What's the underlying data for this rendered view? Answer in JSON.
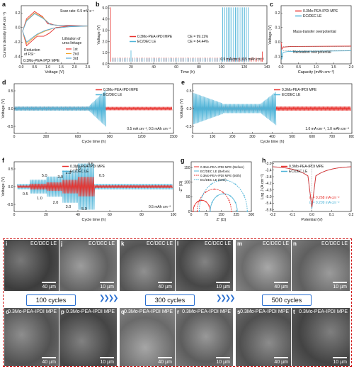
{
  "chart_data": [
    {
      "panel": "a",
      "type": "line",
      "xlabel": "Voltage (V)",
      "ylabel": "Current density (mA cm⁻²)",
      "xticks": [
        "0.0",
        "0.5",
        "1.0",
        "1.5",
        "2.0",
        "2.5"
      ],
      "yticks": [
        "0.2",
        "0.0",
        "-0.2",
        "-0.4"
      ],
      "annotations": [
        "Scan rate: 0.5 mV s⁻¹",
        "Lithiation of urea linkage",
        "Reduction of FSI⁻",
        "0.3Mo-PEA-IPDI MPE"
      ],
      "series": [
        {
          "name": "1st",
          "color": "#e8322e",
          "x": [
            2.5,
            1.8,
            1.3,
            1.05,
            0.85,
            0.6,
            0.2,
            0.05,
            0.2,
            0.5,
            0.8,
            1.0,
            1.1,
            1.3,
            1.8,
            2.5
          ],
          "y": [
            0.02,
            0.02,
            0.0,
            -0.08,
            -0.12,
            -0.12,
            -0.25,
            -0.05,
            0.12,
            0.22,
            0.15,
            0.05,
            0.05,
            0.03,
            0.03,
            0.02
          ]
        },
        {
          "name": "2nd",
          "color": "#f2a52b",
          "x": [
            2.5,
            1.8,
            1.2,
            0.9,
            0.6,
            0.2,
            0.05,
            0.2,
            0.5,
            0.8,
            1.1,
            1.8,
            2.5
          ],
          "y": [
            0.02,
            0.01,
            -0.01,
            -0.05,
            -0.1,
            -0.22,
            -0.05,
            0.1,
            0.2,
            0.14,
            0.04,
            0.02,
            0.02
          ]
        },
        {
          "name": "3rd",
          "color": "#5aa9d8",
          "x": [
            2.5,
            1.8,
            1.2,
            0.9,
            0.6,
            0.2,
            0.05,
            0.2,
            0.5,
            0.8,
            1.1,
            1.8,
            2.5
          ],
          "y": [
            0.02,
            0.01,
            -0.01,
            -0.04,
            -0.09,
            -0.2,
            -0.05,
            0.09,
            0.19,
            0.13,
            0.04,
            0.02,
            0.02
          ]
        }
      ]
    },
    {
      "panel": "b",
      "type": "line",
      "xlabel": "Time (h)",
      "ylabel": "Voltage (V)",
      "xticks": [
        "0",
        "20",
        "40",
        "60",
        "80",
        "100",
        "120",
        "140"
      ],
      "yticks": [
        "0.0",
        "1.0",
        "2.0",
        "3.0",
        "4.0",
        "5.0"
      ],
      "legend": [
        "0.3Mo-PEA-IPDI MPE",
        "EC/DEC LE"
      ],
      "labels": [
        "CE = 99.11%",
        "CE = 84.44%"
      ],
      "note": "0.5 mA cm⁻², 0.5 mAh cm⁻²"
    },
    {
      "panel": "c",
      "type": "line",
      "xlabel": "Capacity (mAh cm⁻²)",
      "ylabel": "Voltage (V)",
      "xticks": [
        "0.0",
        "0.5",
        "1.0",
        "1.5",
        "2.0"
      ],
      "yticks": [
        "0.2",
        "0.1",
        "0.0",
        "-0.1"
      ],
      "legend": [
        "0.3Mo-PEA-IPDI MPE",
        "EC/DEC LE"
      ],
      "annotations": [
        "Mass-transfer overpotential",
        "Nucleation overpotential"
      ]
    },
    {
      "panel": "d",
      "type": "line",
      "xlabel": "Cycle time (h)",
      "ylabel": "Voltage (V)",
      "xticks": [
        "0",
        "300",
        "600",
        "900",
        "1200",
        "1500"
      ],
      "yticks": [
        "0.5",
        "0.0",
        "-0.5"
      ],
      "legend": [
        "0.3Mo-PEA-IPDI MPE",
        "EC/DEC LE"
      ],
      "note": "0.5 mA cm⁻², 0.5 mAh cm⁻²"
    },
    {
      "panel": "e",
      "type": "line",
      "xlabel": "Cycle time (h)",
      "ylabel": "Voltage (V)",
      "xticks": [
        "0",
        "100",
        "200",
        "300",
        "400",
        "500",
        "600",
        "700",
        "800"
      ],
      "yticks": [
        "0.5",
        "0.0",
        "-0.5"
      ],
      "legend": [
        "0.3Mo-PEA-IPDI MPE",
        "EC/DEC LE"
      ],
      "note": "1.0 mA cm⁻², 1.0 mAh cm⁻²"
    },
    {
      "panel": "f",
      "type": "line",
      "xlabel": "Cycle time (h)",
      "ylabel": "Voltage (V)",
      "xticks": [
        "0",
        "20",
        "40",
        "60",
        "80",
        "100"
      ],
      "yticks": [
        "0.5",
        "0.0",
        "-0.5"
      ],
      "legend": [
        "0.3Mo-PEA-IPDI MPE",
        "EC/DEC LE"
      ],
      "rate_labels": [
        "0.5",
        "1.0",
        "2.0",
        "3.0",
        "5.0",
        "0.5",
        "1.0",
        "2.0",
        "3.0",
        "5.0",
        "0.5"
      ],
      "note": "0.5 mAh cm⁻²"
    },
    {
      "panel": "g",
      "type": "scatter",
      "xlabel": "Z' (Ω)",
      "ylabel": "-Z'' (Ω)",
      "xticks": [
        "0",
        "75",
        "150",
        "225",
        "300"
      ],
      "yticks": [
        "0",
        "50",
        "100",
        "150"
      ],
      "legend": [
        "0.3Mo-PEA-IPDI MPE (Before)",
        "EC/DEC LE (Before)",
        "0.3Mo-PEA-IPDI MPE (50th)",
        "EC/DEC LE (50th)"
      ]
    },
    {
      "panel": "h",
      "type": "line",
      "xlabel": "Potential (V)",
      "ylabel": "Log J (A cm⁻²)",
      "xticks": [
        "-0.2",
        "-0.1",
        "0.0",
        "0.1",
        "0.2"
      ],
      "yticks": [
        "-3.0",
        "-3.4",
        "-3.8",
        "-4.2",
        "-4.6",
        "-5.0",
        "-5.4",
        "-5.8"
      ],
      "legend": [
        "0.3Mo-PEA-IPDI MPE",
        "EC/DEC LE"
      ],
      "labels": [
        "i₀ = 0.268 mA cm⁻²",
        "i₀ = 0.209 mA cm⁻²"
      ]
    }
  ],
  "colors": {
    "mpe": "#e8322e",
    "le": "#4fb4d8",
    "frame": "#d01818",
    "arrow": "#2a6fd0"
  },
  "sem": {
    "panels": [
      {
        "letter": "i",
        "tag": "EC/DEC LE",
        "scale": "40 µm"
      },
      {
        "letter": "j",
        "tag": "EC/DEC LE",
        "scale": "10 µm"
      },
      {
        "letter": "k",
        "tag": "EC/DEC LE",
        "scale": "40 µm"
      },
      {
        "letter": "l",
        "tag": "EC/DEC LE",
        "scale": "10 µm"
      },
      {
        "letter": "m",
        "tag": "EC/DEC LE",
        "scale": "40 µm"
      },
      {
        "letter": "n",
        "tag": "EC/DEC LE",
        "scale": "10 µm"
      },
      {
        "letter": "o",
        "tag": "0.3Mo-PEA-IPDI MPE",
        "scale": "40 µm"
      },
      {
        "letter": "p",
        "tag": "0.3Mo-PEA-IPDI MPE",
        "scale": "10 µm"
      },
      {
        "letter": "q",
        "tag": "0.3Mo-PEA-IPDI MPE",
        "scale": "40 µm"
      },
      {
        "letter": "r",
        "tag": "0.3Mo-PEA-IPDI MPE",
        "scale": "10 µm"
      },
      {
        "letter": "s",
        "tag": "0.3Mo-PEA-IPDI MPE",
        "scale": "40 µm"
      },
      {
        "letter": "t",
        "tag": "0.3Mo-PEA-IPDI MPE",
        "scale": "10 µm"
      }
    ],
    "cycles": [
      "100 cycles",
      "300 cycles",
      "500 cycles"
    ]
  }
}
